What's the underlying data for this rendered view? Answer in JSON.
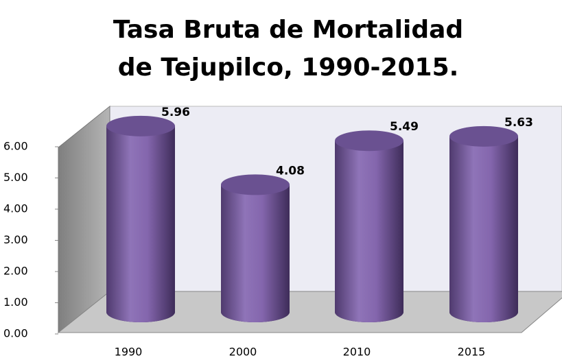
{
  "chart_data": {
    "type": "bar",
    "title": "Tasa Bruta de Mortalidad de Tejupilco, 1990-2015.",
    "categories": [
      "1990",
      "2000",
      "2010",
      "2015"
    ],
    "values": [
      5.96,
      4.08,
      5.49,
      5.63
    ],
    "color": "#8064a2",
    "ylim": [
      0,
      6
    ],
    "yticks": [
      {
        "value": 0,
        "label": "0.00"
      },
      {
        "value": 1,
        "label": "1.00"
      },
      {
        "value": 2,
        "label": "2.00"
      },
      {
        "value": 3,
        "label": "3.00"
      },
      {
        "value": 4,
        "label": "4.00"
      },
      {
        "value": 5,
        "label": "5.00"
      },
      {
        "value": 6,
        "label": "6.00"
      }
    ]
  }
}
